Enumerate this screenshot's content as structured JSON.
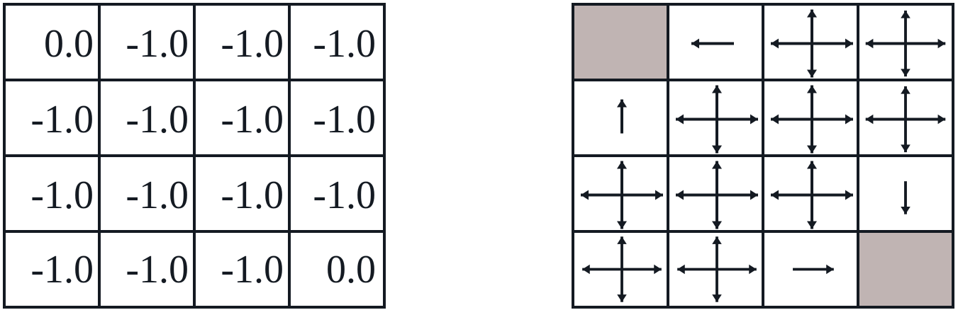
{
  "value_grid": {
    "rows": [
      [
        "0.0",
        "-1.0",
        "-1.0",
        "-1.0"
      ],
      [
        "-1.0",
        "-1.0",
        "-1.0",
        "-1.0"
      ],
      [
        "-1.0",
        "-1.0",
        "-1.0",
        "-1.0"
      ],
      [
        "-1.0",
        "-1.0",
        "-1.0",
        "0.0"
      ]
    ]
  },
  "policy_grid": {
    "rows": [
      [
        "terminal",
        "left",
        "all",
        "all"
      ],
      [
        "up",
        "all",
        "all",
        "all"
      ],
      [
        "all",
        "all",
        "all",
        "down"
      ],
      [
        "all",
        "all",
        "right",
        "terminal"
      ]
    ]
  },
  "colors": {
    "line": "#141a22",
    "terminal_fill": "#c0b4b3",
    "background": "#ffffff"
  }
}
